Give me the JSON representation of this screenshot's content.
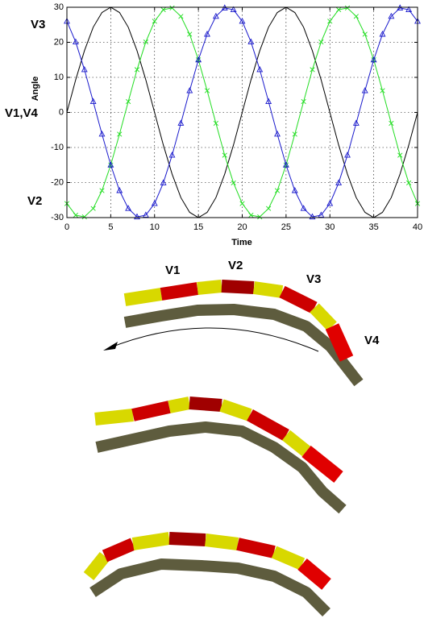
{
  "chart_data": {
    "type": "line",
    "x_label": "Time",
    "y_label": "Angle",
    "annotations": [
      "V3",
      "V1,V4",
      "V2"
    ],
    "x": [
      0,
      1,
      2,
      3,
      4,
      5,
      6,
      7,
      8,
      9,
      10,
      11,
      12,
      13,
      14,
      15,
      16,
      17,
      18,
      19,
      20,
      21,
      22,
      23,
      24,
      25,
      26,
      27,
      28,
      29,
      30,
      31,
      32,
      33,
      34,
      35,
      36,
      37,
      38,
      39,
      40
    ],
    "series": [
      {
        "color": "#000000",
        "marker": "none",
        "values": [
          0,
          9.3,
          17.6,
          24.3,
          28.5,
          30,
          28.5,
          24.3,
          17.6,
          9.3,
          0,
          -9.3,
          -17.6,
          -24.3,
          -28.5,
          -30,
          -28.5,
          -24.3,
          -17.6,
          -9.3,
          0,
          9.3,
          17.6,
          24.3,
          28.5,
          30,
          28.5,
          24.3,
          17.6,
          9.3,
          0,
          -9.3,
          -17.6,
          -24.3,
          -28.5,
          -30,
          -28.5,
          -24.3,
          -17.6,
          -9.3,
          0
        ]
      },
      {
        "color": "#22dd22",
        "marker": "x",
        "values": [
          -26,
          -29.3,
          -29.8,
          -27.4,
          -22.3,
          -15,
          -6.2,
          3.1,
          12.2,
          20.1,
          26,
          29.3,
          29.8,
          27.4,
          22.3,
          15,
          6.2,
          -3.1,
          -12.2,
          -20.1,
          -26,
          -29.3,
          -29.8,
          -27.4,
          -22.3,
          -15,
          -6.2,
          3.1,
          12.2,
          20.1,
          26,
          29.3,
          29.8,
          27.4,
          22.3,
          15,
          6.2,
          -3.1,
          -12.2,
          -20.1,
          -26
        ]
      },
      {
        "color": "#1a1acc",
        "marker": "triangle",
        "values": [
          26,
          20.1,
          12.2,
          3.1,
          -6.2,
          -15,
          -22.3,
          -27.4,
          -29.8,
          -29.3,
          -26,
          -20.1,
          -12.2,
          -3.1,
          6.2,
          15,
          22.3,
          27.4,
          29.8,
          29.3,
          26,
          20.1,
          12.2,
          3.1,
          -6.2,
          -15,
          -22.3,
          -27.4,
          -29.8,
          -29.3,
          -26,
          -20.1,
          -12.2,
          -3.1,
          6.2,
          15,
          22.3,
          27.4,
          29.8,
          29.3,
          26
        ]
      }
    ],
    "xlim": [
      0,
      40
    ],
    "ylim": [
      -30,
      30
    ],
    "xticks": [
      0,
      5,
      10,
      15,
      20,
      25,
      30,
      35,
      40
    ],
    "yticks": [
      -30,
      -20,
      -10,
      0,
      10,
      20,
      30
    ],
    "grid": true
  },
  "figure_labels": [
    "V1",
    "V2",
    "V3",
    "V4"
  ]
}
